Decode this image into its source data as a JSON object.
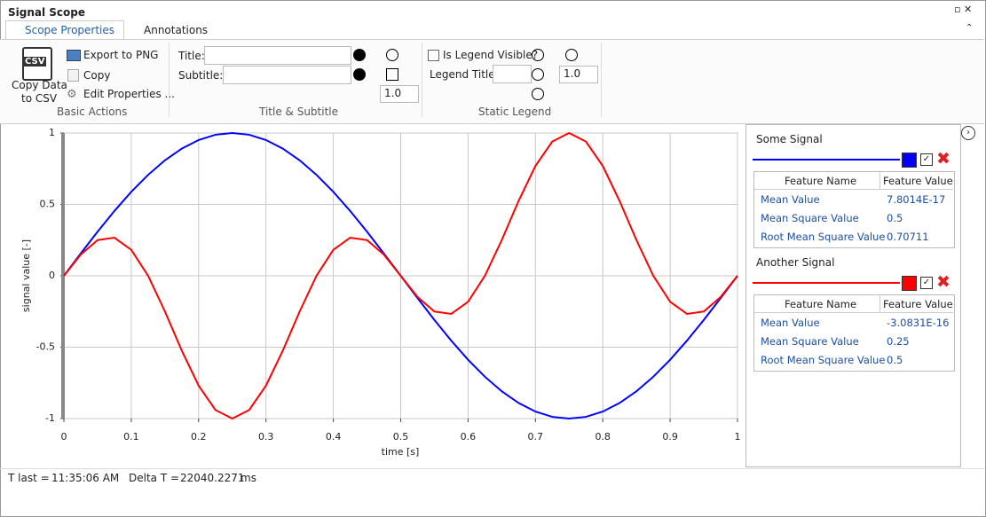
{
  "window": {
    "title": "Signal Scope"
  },
  "tabs": [
    "Scope Properties",
    "Annotations"
  ],
  "ribbon": {
    "basic_actions": {
      "csv_icon": "CSV",
      "copy_data_line1": "Copy Data",
      "copy_data_line2": "to CSV",
      "export_png": "Export to PNG",
      "copy": "Copy",
      "edit_properties": "Edit Properties ...",
      "group": "Basic Actions"
    },
    "title_subtitle": {
      "title_label": "Title:",
      "subtitle_label": "Subtitle:",
      "spinner": "1.0",
      "group": "Title & Subtitle"
    },
    "static_legend": {
      "legend_visible": "Is Legend Visible?",
      "legend_title": "Legend Title:",
      "spinner": "1.0",
      "group": "Static Legend"
    }
  },
  "chart_data": {
    "type": "line",
    "xlabel": "time [s]",
    "ylabel": "signal value [-]",
    "x": [
      0,
      0.025,
      0.05,
      0.075,
      0.1,
      0.125,
      0.15,
      0.175,
      0.2,
      0.225,
      0.25,
      0.275,
      0.3,
      0.325,
      0.35,
      0.375,
      0.4,
      0.425,
      0.45,
      0.475,
      0.5,
      0.525,
      0.55,
      0.575,
      0.6,
      0.625,
      0.65,
      0.675,
      0.7,
      0.725,
      0.75,
      0.775,
      0.8,
      0.825,
      0.85,
      0.875,
      0.9,
      0.925,
      0.95,
      0.975,
      1
    ],
    "series": [
      {
        "name": "Some Signal",
        "color": "#0000ff",
        "values": [
          0,
          0.156,
          0.309,
          0.454,
          0.588,
          0.707,
          0.809,
          0.891,
          0.951,
          0.988,
          1,
          0.988,
          0.951,
          0.891,
          0.809,
          0.707,
          0.588,
          0.454,
          0.309,
          0.156,
          0,
          -0.156,
          -0.309,
          -0.454,
          -0.588,
          -0.707,
          -0.809,
          -0.891,
          -0.951,
          -0.988,
          -1,
          -0.988,
          -0.951,
          -0.891,
          -0.809,
          -0.707,
          -0.588,
          -0.454,
          -0.309,
          -0.156,
          0
        ]
      },
      {
        "name": "Another Signal",
        "color": "#ff0000",
        "values": [
          0,
          0.148,
          0.25,
          0.267,
          0.182,
          0,
          -0.25,
          -0.524,
          -0.769,
          -0.94,
          -1,
          -0.94,
          -0.769,
          -0.524,
          -0.25,
          0,
          0.182,
          0.267,
          0.25,
          0.148,
          0,
          -0.148,
          -0.25,
          -0.267,
          -0.182,
          0,
          0.25,
          0.524,
          0.769,
          0.94,
          1,
          0.94,
          0.769,
          0.524,
          0.25,
          0,
          -0.182,
          -0.267,
          -0.25,
          -0.148,
          0
        ]
      }
    ],
    "xlim": [
      0,
      1
    ],
    "xticks": [
      0,
      0.1,
      0.2,
      0.3,
      0.4,
      0.5,
      0.6,
      0.7,
      0.8,
      0.9,
      1
    ],
    "ylim": [
      -1,
      1
    ],
    "yticks": [
      -1,
      -0.5,
      0,
      0.5,
      1
    ],
    "grid": true
  },
  "legend_panel": {
    "headers": [
      "Feature Name",
      "Feature Value"
    ],
    "items": [
      {
        "rows": [
          [
            "Mean Value",
            "7.8014E-17"
          ],
          [
            "Mean Square Value",
            "0.5"
          ],
          [
            "Root Mean Square Value",
            "0.70711"
          ]
        ]
      },
      {
        "rows": [
          [
            "Mean Value",
            "-3.0831E-16"
          ],
          [
            "Mean Square Value",
            "0.25"
          ],
          [
            "Root Mean Square Value",
            "0.5"
          ]
        ]
      }
    ]
  },
  "status": {
    "t_last_label": "T last =",
    "t_last": "11:35:06 AM",
    "delta_label": "Delta T =",
    "delta": "22040.2271",
    "delta_unit": "ms"
  }
}
